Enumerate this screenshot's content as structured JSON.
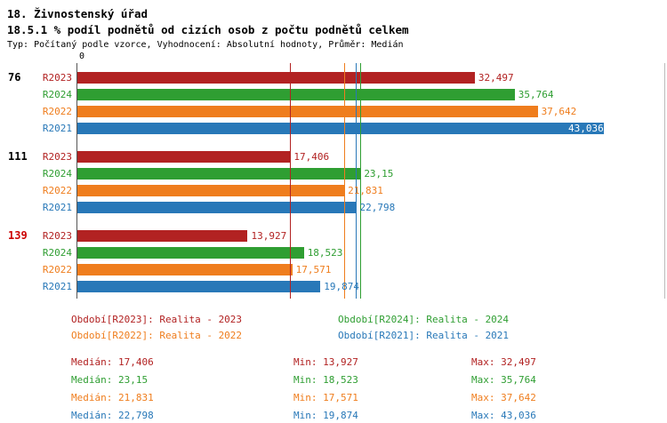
{
  "header": {
    "title": "18. Živnostenský úřad",
    "subtitle": "18.5.1 % podíl podnětů od cizích osob z počtu podnětů celkem",
    "meta": "Typ: Počítaný podle vzorce, Vyhodnocení: Absolutní hodnoty, Průměr: Medián"
  },
  "chart_data": {
    "type": "bar",
    "orientation": "horizontal",
    "axis": {
      "origin_label": "0",
      "xlim": [
        0,
        48
      ],
      "grid": false
    },
    "colors": {
      "R2023": "#b22222",
      "R2024": "#2f9e32",
      "R2022": "#ef7d1d",
      "R2021": "#2878b8"
    },
    "series_order": [
      "R2023",
      "R2024",
      "R2022",
      "R2021"
    ],
    "groups": [
      {
        "label": "76",
        "label_color": "#000000",
        "bars": [
          {
            "series": "R2023",
            "value": 32.497,
            "value_label": "32,497"
          },
          {
            "series": "R2024",
            "value": 35.764,
            "value_label": "35,764"
          },
          {
            "series": "R2022",
            "value": 37.642,
            "value_label": "37,642"
          },
          {
            "series": "R2021",
            "value": 43.036,
            "value_label": "43,036"
          }
        ]
      },
      {
        "label": "111",
        "label_color": "#000000",
        "bars": [
          {
            "series": "R2023",
            "value": 17.406,
            "value_label": "17,406"
          },
          {
            "series": "R2024",
            "value": 23.15,
            "value_label": "23,15"
          },
          {
            "series": "R2022",
            "value": 21.831,
            "value_label": "21,831"
          },
          {
            "series": "R2021",
            "value": 22.798,
            "value_label": "22,798"
          }
        ]
      },
      {
        "label": "139",
        "label_color": "#cc0000",
        "bars": [
          {
            "series": "R2023",
            "value": 13.927,
            "value_label": "13,927"
          },
          {
            "series": "R2024",
            "value": 18.523,
            "value_label": "18,523"
          },
          {
            "series": "R2022",
            "value": 17.571,
            "value_label": "17,571"
          },
          {
            "series": "R2021",
            "value": 19.874,
            "value_label": "19,874"
          }
        ]
      }
    ],
    "median_lines": [
      {
        "series": "R2023",
        "value": 17.406
      },
      {
        "series": "R2024",
        "value": 23.15
      },
      {
        "series": "R2022",
        "value": 21.831
      },
      {
        "series": "R2021",
        "value": 22.798
      }
    ]
  },
  "legend": [
    {
      "series": "R2023",
      "label": "Období[R2023]: Realita - 2023"
    },
    {
      "series": "R2024",
      "label": "Období[R2024]: Realita - 2024"
    },
    {
      "series": "R2022",
      "label": "Období[R2022]: Realita - 2022"
    },
    {
      "series": "R2021",
      "label": "Období[R2021]: Realita - 2021"
    }
  ],
  "stats": [
    {
      "series": "R2023",
      "median": "Medián: 17,406",
      "min": "Min: 13,927",
      "max": "Max: 32,497"
    },
    {
      "series": "R2024",
      "median": "Medián: 23,15",
      "min": "Min: 18,523",
      "max": "Max: 35,764"
    },
    {
      "series": "R2022",
      "median": "Medián: 21,831",
      "min": "Min: 17,571",
      "max": "Max: 37,642"
    },
    {
      "series": "R2021",
      "median": "Medián: 22,798",
      "min": "Min: 19,874",
      "max": "Max: 43,036"
    }
  ]
}
